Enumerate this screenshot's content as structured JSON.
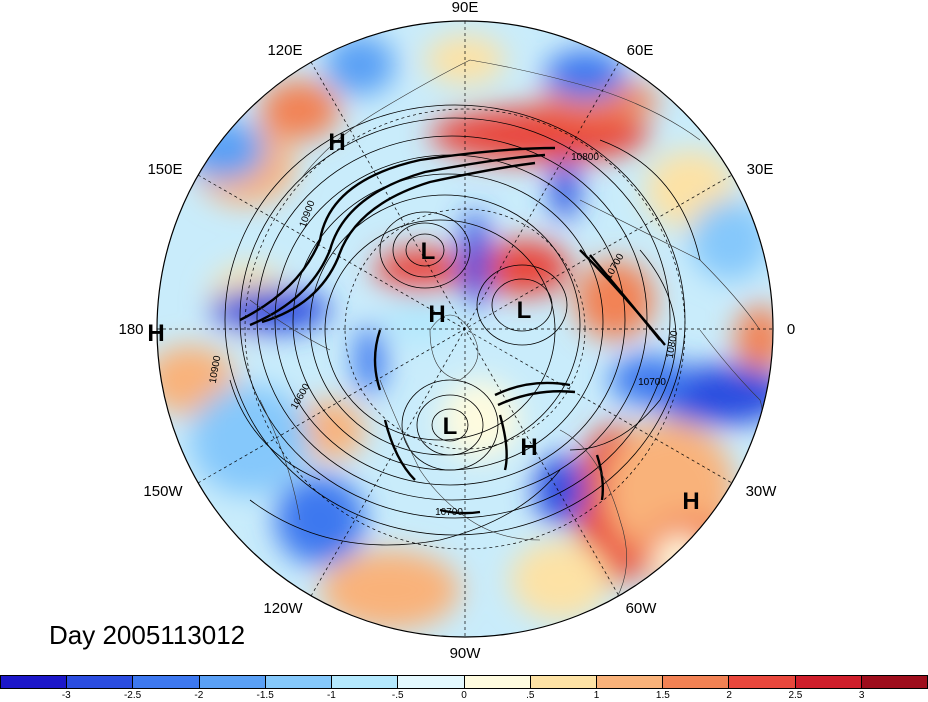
{
  "map": {
    "longitude_labels": [
      {
        "text": "90E",
        "lon": 90
      },
      {
        "text": "60E",
        "lon": 60
      },
      {
        "text": "30E",
        "lon": 30
      },
      {
        "text": "0",
        "lon": 0
      },
      {
        "text": "30W",
        "lon": -30
      },
      {
        "text": "60W",
        "lon": -60
      },
      {
        "text": "90W",
        "lon": -90
      },
      {
        "text": "120W",
        "lon": -120
      },
      {
        "text": "150W",
        "lon": -150
      },
      {
        "text": "180",
        "lon": 180
      },
      {
        "text": "150E",
        "lon": 150
      },
      {
        "text": "120E",
        "lon": 120
      }
    ],
    "pressure_centers": [
      {
        "type": "H",
        "label": "H"
      },
      {
        "type": "L",
        "label": "L"
      },
      {
        "type": "H",
        "label": "H"
      },
      {
        "type": "L",
        "label": "L"
      },
      {
        "type": "L",
        "label": "L"
      },
      {
        "type": "H",
        "label": "H"
      },
      {
        "type": "H",
        "label": "H"
      },
      {
        "type": "H",
        "label": "H"
      }
    ],
    "contour_labels": [
      "10800",
      "10900",
      "10600",
      "10700",
      "10800",
      "10700",
      "10900",
      "10700"
    ]
  },
  "footer": {
    "day_label": "Day 2005113012"
  },
  "colorbar": {
    "colors": [
      "#1c17c9",
      "#2b4de0",
      "#3d78ef",
      "#5aa0f5",
      "#85c8fb",
      "#b4e8fd",
      "#e3f8fe",
      "#fefbdf",
      "#fde2a5",
      "#f9b27a",
      "#f28254",
      "#e9473c",
      "#cf1e2b",
      "#9e0d1c"
    ],
    "tick_labels": [
      "-3",
      "-2.5",
      "-2",
      "-1.5",
      "-1",
      "-.5",
      "0",
      ".5",
      "1",
      "1.5",
      "2",
      "2.5",
      "3"
    ]
  }
}
